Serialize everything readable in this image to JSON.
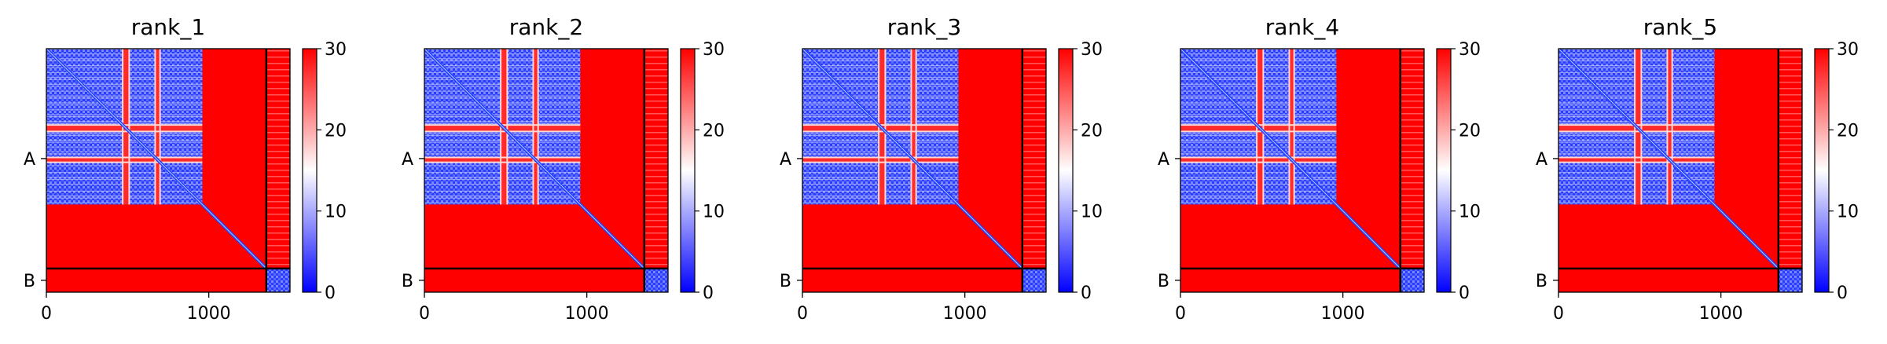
{
  "chart_data": {
    "type": "heatmap",
    "description_note": "Five predicted aligned error (PAE) style heatmaps, one per model rank, sharing a blue-white-red colormap.",
    "colormap": {
      "low": "#0000ff",
      "mid": "#ffffff",
      "high": "#ff0000",
      "vmin": 0,
      "vmax": 30
    },
    "colorbar_ticks": [
      "0",
      "10",
      "20",
      "30"
    ],
    "x_ticks": [
      "0",
      "1000"
    ],
    "x_tick_values": [
      0,
      1000
    ],
    "y_ticks": [
      "A",
      "B"
    ],
    "chain_lengths": {
      "A": 1354,
      "B": 146
    },
    "total_length": 1500,
    "panels": [
      {
        "title": "rank_1"
      },
      {
        "title": "rank_2"
      },
      {
        "title": "rank_3"
      },
      {
        "title": "rank_4"
      },
      {
        "title": "rank_5"
      }
    ]
  }
}
